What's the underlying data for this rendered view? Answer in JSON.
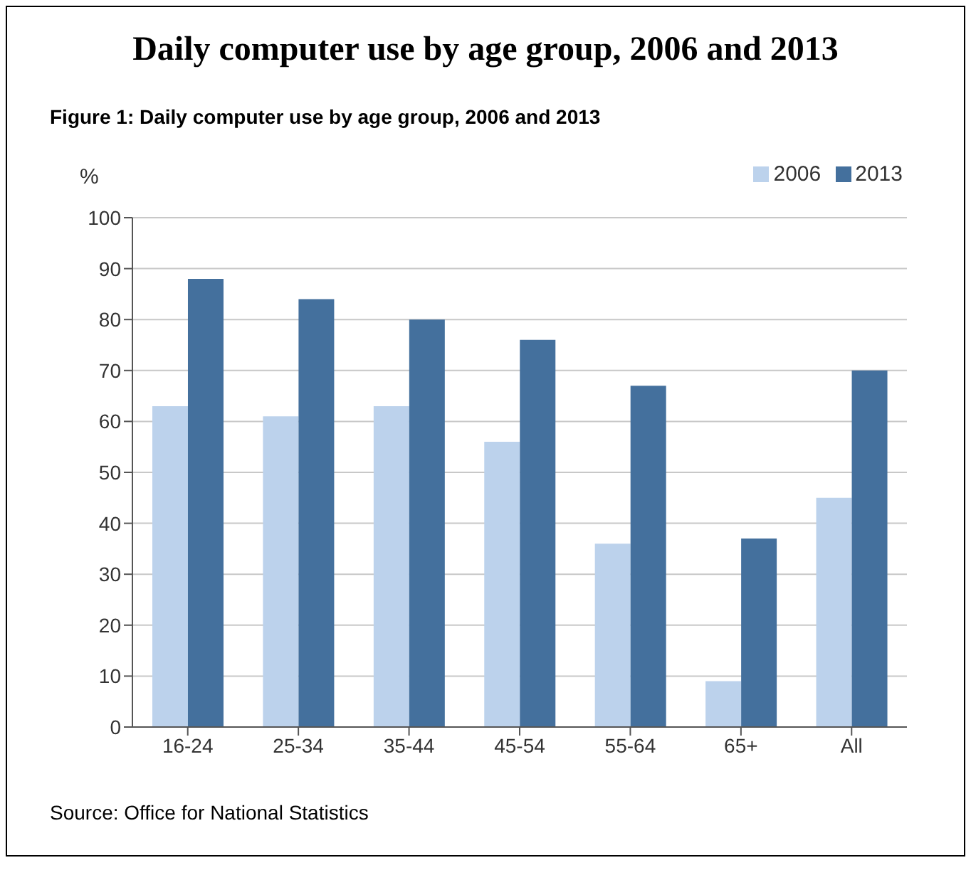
{
  "chart_data": {
    "type": "bar",
    "title": "Daily computer use by age group, 2006 and 2013",
    "subtitle": "Figure 1: Daily computer use by age group, 2006 and 2013",
    "ylabel": "%",
    "categories": [
      "16-24",
      "25-34",
      "35-44",
      "45-54",
      "55-64",
      "65+",
      "All"
    ],
    "series": [
      {
        "name": "2006",
        "color": "#bcd2ec",
        "values": [
          63,
          61,
          63,
          56,
          36,
          9,
          45
        ]
      },
      {
        "name": "2013",
        "color": "#44709d",
        "values": [
          88,
          84,
          80,
          76,
          67,
          37,
          70
        ]
      }
    ],
    "ylim": [
      0,
      100
    ],
    "yticks": [
      0,
      10,
      20,
      30,
      40,
      50,
      60,
      70,
      80,
      90,
      100
    ],
    "grid": "y",
    "legend": "top right",
    "annotations": [
      "Source: Office for National Statistics"
    ]
  }
}
